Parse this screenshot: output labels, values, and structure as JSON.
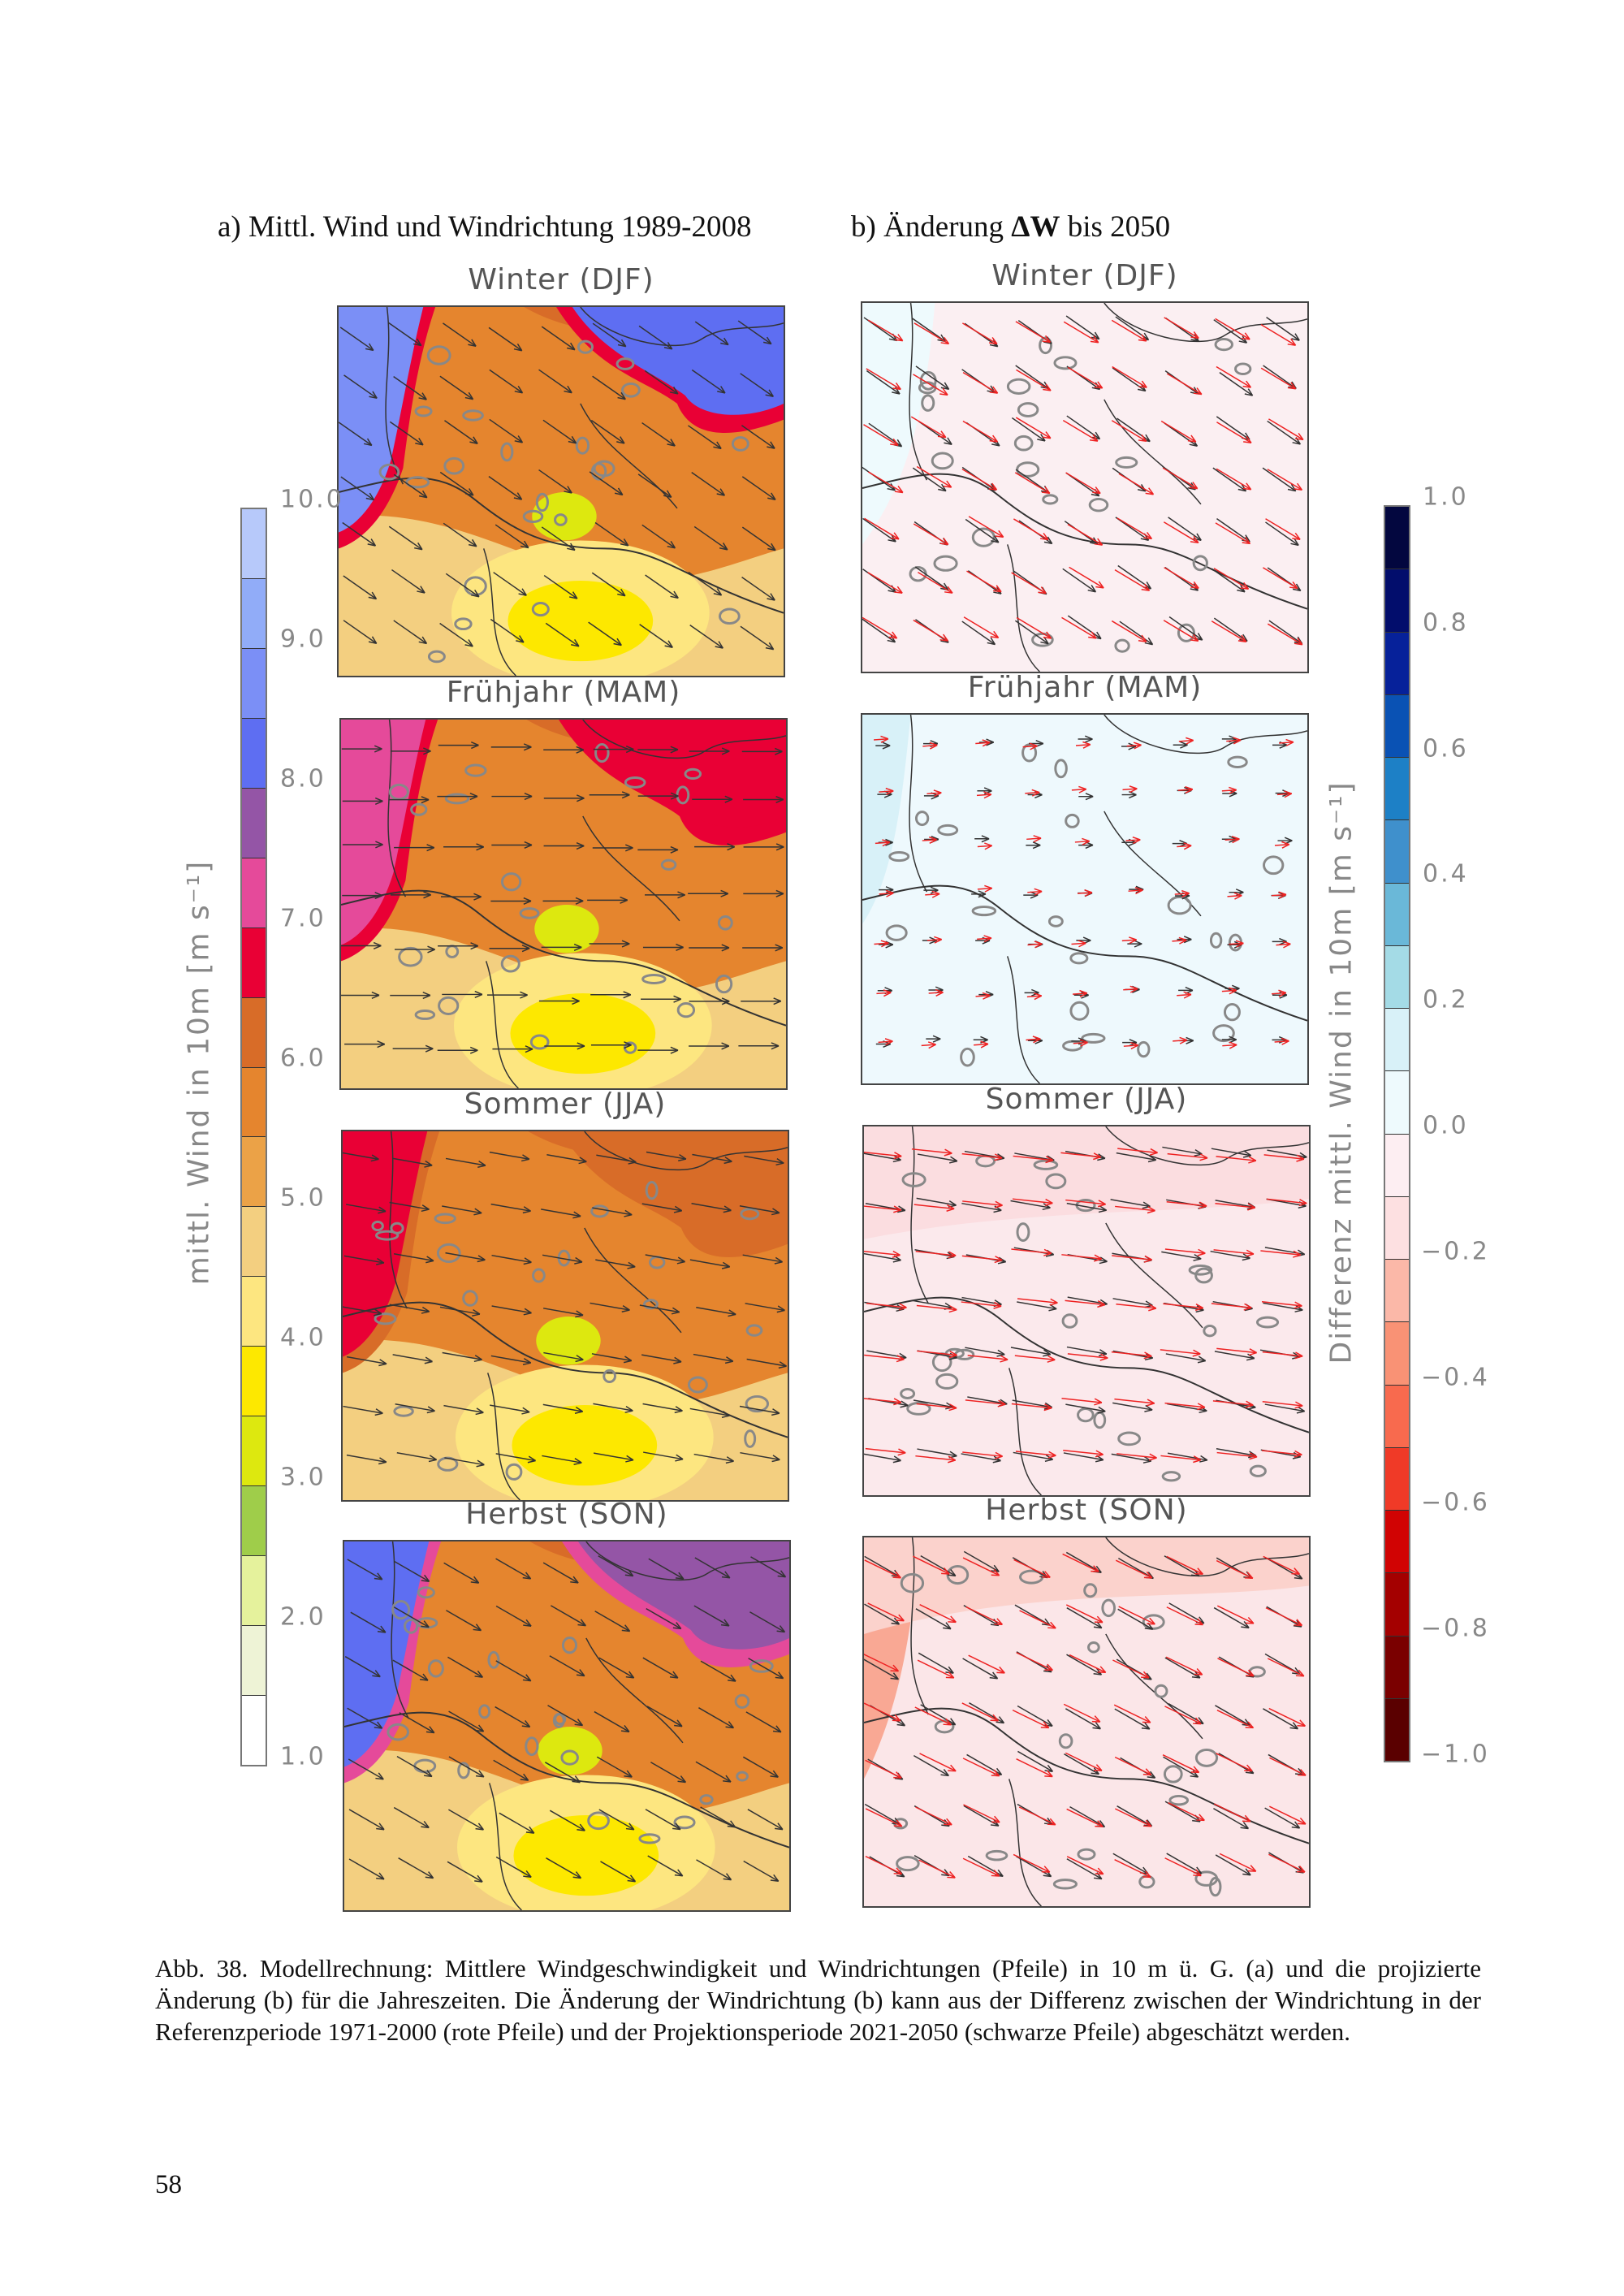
{
  "panels": {
    "a_title": "a) Mittl. Wind und Windrichtung 1989-2008",
    "b_title_prefix": "b) Änderung ",
    "b_title_bold": "ΔW",
    "b_title_suffix": " bis 2050"
  },
  "seasons": [
    {
      "label": "Winter (DJF)",
      "wind_dir_deg": 55,
      "change_tint": "#fbeff2"
    },
    {
      "label": "Frühjahr (MAM)",
      "wind_dir_deg": 90,
      "change_tint": "#eef9fd"
    },
    {
      "label": "Sommer (JJA)",
      "wind_dir_deg": 80,
      "change_tint": "#fbe9ec"
    },
    {
      "label": "Herbst (SON)",
      "wind_dir_deg": 60,
      "change_tint": "#fbe6e8"
    }
  ],
  "left_colorbar": {
    "label": "mittl. Wind in 10m [m s⁻¹]",
    "ticks": [
      "1.0",
      "2.0",
      "3.0",
      "4.0",
      "5.0",
      "6.0",
      "7.0",
      "8.0",
      "9.0",
      "10.0"
    ],
    "colors_bottom_to_top": [
      "#ffffff",
      "#eef3d6",
      "#e5f29c",
      "#9fcd4a",
      "#dde80f",
      "#fde800",
      "#fde680",
      "#f3cf80",
      "#eba247",
      "#e5852e",
      "#d86c28",
      "#e90035",
      "#e54a9a",
      "#9455a6",
      "#5e6ef2",
      "#7b8ff6",
      "#91acf8",
      "#b7c9fa"
    ]
  },
  "right_colorbar": {
    "label": "Differenz mittl. Wind in 10m [m s⁻¹]",
    "ticks": [
      "1.0",
      "0.8",
      "0.6",
      "0.4",
      "0.2",
      "0.0",
      "−0.2",
      "−0.4",
      "−0.6",
      "−0.8",
      "−1.0"
    ],
    "colors_top_to_bottom": [
      "#03073f",
      "#020d6c",
      "#06219a",
      "#0a52b4",
      "#1d80c6",
      "#3f90cc",
      "#6ab8d8",
      "#a4dbe6",
      "#d8f1f8",
      "#eefafd",
      "#fdeef2",
      "#fde0e1",
      "#fbb8a8",
      "#f99275",
      "#f86a4e",
      "#f03a27",
      "#d10303",
      "#a40000",
      "#7a0000",
      "#5a0000"
    ]
  },
  "caption": "Abb. 38. Modellrechnung: Mittlere Windgeschwindigkeit und Windrichtungen (Pfeile) in 10 m ü. G. (a) und die projizierte Änderung (b) für die Jahreszeiten. Die Änderung der Windrichtung (b) kann aus der Differenz zwischen der Windrichtung in der Referenzperiode 1971-2000 (rote Pfeile) und der Projektionsperiode 2021-2050 (schwarze Pfeile) abgeschätzt werden.",
  "page_number": "58"
}
